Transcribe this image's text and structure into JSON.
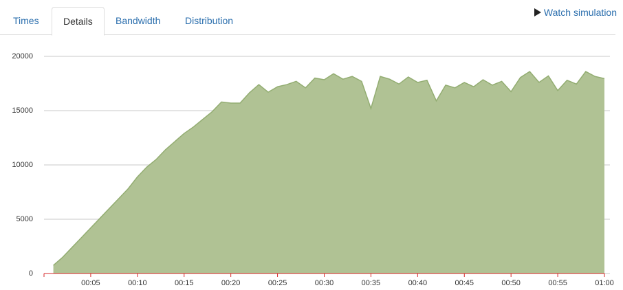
{
  "tabs": [
    {
      "label": "Times",
      "active": false
    },
    {
      "label": "Details",
      "active": true
    },
    {
      "label": "Bandwidth",
      "active": false
    },
    {
      "label": "Distribution",
      "active": false
    }
  ],
  "watch_link": "Watch simulation",
  "chart_data": {
    "type": "area",
    "color": "#b0c294",
    "line_color": "#93ad72",
    "grid": true,
    "x": [
      1,
      2,
      3,
      4,
      5,
      6,
      7,
      8,
      9,
      10,
      11,
      12,
      13,
      14,
      15,
      16,
      17,
      18,
      19,
      20,
      21,
      22,
      23,
      24,
      25,
      26,
      27,
      28,
      29,
      30,
      31,
      32,
      33,
      34,
      35,
      36,
      37,
      38,
      39,
      40,
      41,
      42,
      43,
      44,
      45,
      46,
      47,
      48,
      49,
      50,
      51,
      52,
      53,
      54,
      55,
      56,
      57,
      58,
      59,
      60
    ],
    "values": [
      750,
      1500,
      2400,
      3300,
      4200,
      5100,
      6000,
      6900,
      7800,
      8900,
      9800,
      10500,
      11400,
      12150,
      12900,
      13500,
      14200,
      14900,
      15800,
      15700,
      15700,
      16650,
      17400,
      16700,
      17200,
      17400,
      17700,
      17100,
      18000,
      17850,
      18400,
      17900,
      18150,
      17700,
      15200,
      18150,
      17900,
      17450,
      18100,
      17600,
      17800,
      15900,
      17350,
      17100,
      17600,
      17200,
      17850,
      17350,
      17700,
      16750,
      18050,
      18600,
      17600,
      18200,
      16850,
      17800,
      17450,
      18600,
      18150,
      17950
    ],
    "xlim": [
      0,
      60
    ],
    "xticks": [
      {
        "value": 5,
        "label": "00:05"
      },
      {
        "value": 10,
        "label": "00:10"
      },
      {
        "value": 15,
        "label": "00:15"
      },
      {
        "value": 20,
        "label": "00:20"
      },
      {
        "value": 25,
        "label": "00:25"
      },
      {
        "value": 30,
        "label": "00:30"
      },
      {
        "value": 35,
        "label": "00:35"
      },
      {
        "value": 40,
        "label": "00:40"
      },
      {
        "value": 45,
        "label": "00:45"
      },
      {
        "value": 50,
        "label": "00:50"
      },
      {
        "value": 55,
        "label": "00:55"
      },
      {
        "value": 60,
        "label": "01:00"
      }
    ],
    "ylim": [
      0,
      20000
    ],
    "yticks": [
      0,
      5000,
      10000,
      15000,
      20000
    ]
  }
}
